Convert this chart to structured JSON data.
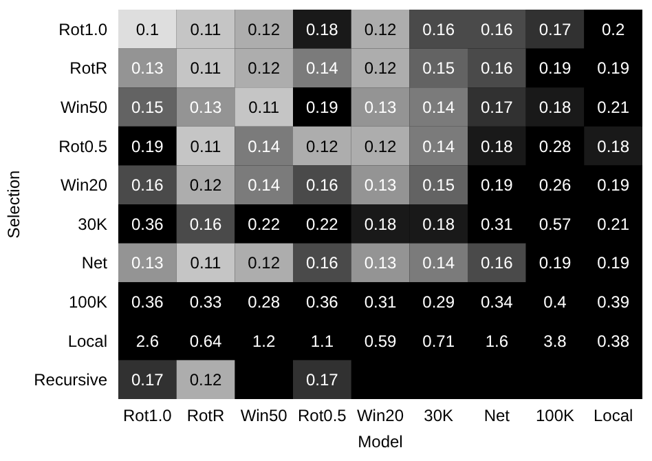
{
  "chart_data": {
    "type": "heatmap",
    "xlabel": "Model",
    "ylabel": "Selection",
    "categories": [
      "Rot1.0",
      "RotR",
      "Win50",
      "Rot0.5",
      "Win20",
      "30K",
      "Net",
      "100K",
      "Local"
    ],
    "y_categories": [
      "Rot1.0",
      "RotR",
      "Win50",
      "Rot0.5",
      "Win20",
      "30K",
      "Net",
      "100K",
      "Local",
      "Recursive"
    ],
    "cells": [
      [
        0.1,
        0.11,
        0.12,
        0.18,
        0.12,
        0.16,
        0.16,
        0.17,
        0.2
      ],
      [
        0.13,
        0.11,
        0.12,
        0.14,
        0.12,
        0.15,
        0.16,
        0.19,
        0.19
      ],
      [
        0.15,
        0.13,
        0.11,
        0.19,
        0.13,
        0.14,
        0.17,
        0.18,
        0.21
      ],
      [
        0.19,
        0.11,
        0.14,
        0.12,
        0.12,
        0.14,
        0.18,
        0.28,
        0.18
      ],
      [
        0.16,
        0.12,
        0.14,
        0.16,
        0.13,
        0.15,
        0.19,
        0.26,
        0.19
      ],
      [
        0.36,
        0.16,
        0.22,
        0.22,
        0.18,
        0.18,
        0.31,
        0.57,
        0.21
      ],
      [
        0.13,
        0.11,
        0.12,
        0.16,
        0.13,
        0.14,
        0.16,
        0.19,
        0.19
      ],
      [
        0.36,
        0.33,
        0.28,
        0.36,
        0.31,
        0.29,
        0.34,
        0.4,
        0.39
      ],
      [
        2.6,
        0.64,
        1.2,
        1.1,
        0.59,
        0.71,
        1.6,
        3.8,
        0.38
      ],
      [
        0.17,
        0.12,
        null,
        0.17,
        null,
        null,
        null,
        null,
        null
      ]
    ],
    "data_labels": true
  }
}
